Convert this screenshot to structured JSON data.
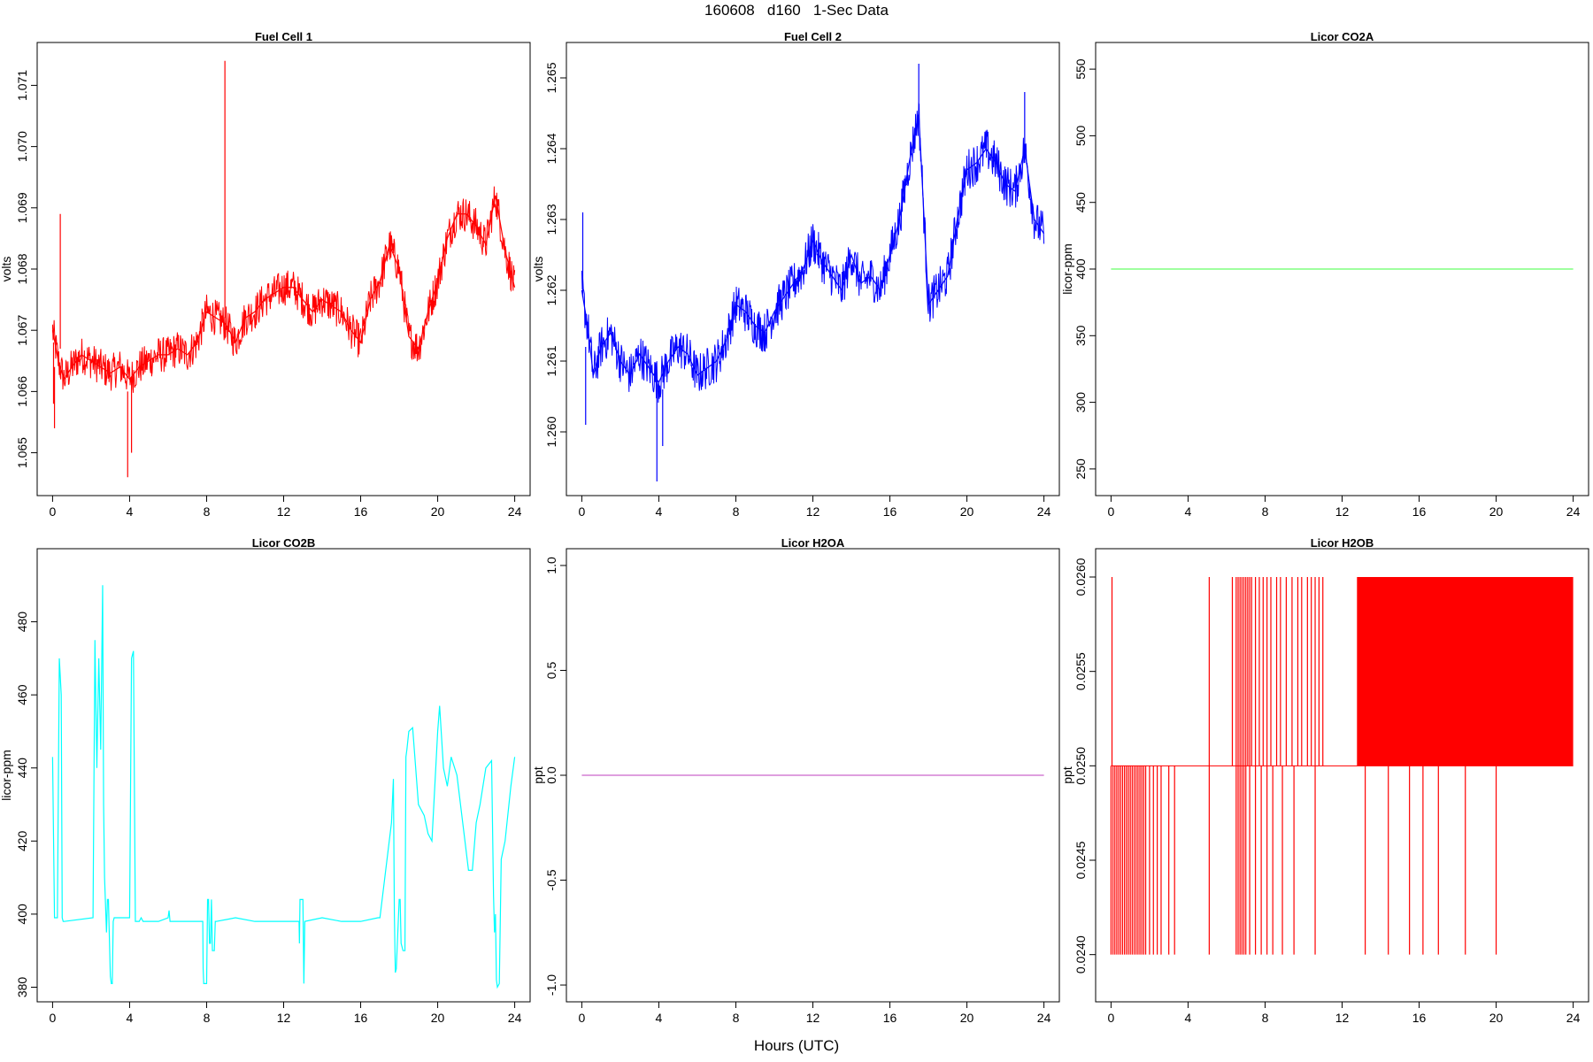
{
  "figure": {
    "title": "160608   d160   1-Sec Data",
    "xlabel": "Hours (UTC)"
  },
  "chart_data": [
    {
      "type": "line",
      "title": "Fuel Cell 1",
      "xlabel": "",
      "ylabel": "volts",
      "color": "#ff0000",
      "xlim": [
        -0.8,
        24.8
      ],
      "ylim": [
        1.0643,
        1.0717
      ],
      "xticks": [
        0,
        4,
        8,
        12,
        16,
        20,
        24
      ],
      "yticks": [
        1.065,
        1.066,
        1.067,
        1.068,
        1.069,
        1.07,
        1.071
      ],
      "ytick_labels": [
        "1.065",
        "1.066",
        "1.067",
        "1.068",
        "1.069",
        "1.070",
        "1.071"
      ],
      "noise": 0.0003,
      "series": [
        {
          "x": [
            0,
            0.3,
            0.6,
            1,
            1.5,
            2,
            2.5,
            3,
            3.5,
            4,
            4.5,
            5,
            5.5,
            6,
            6.5,
            7,
            7.5,
            8,
            8.5,
            9,
            9.5,
            10,
            10.5,
            11,
            11.5,
            12,
            12.5,
            13,
            13.5,
            14,
            14.5,
            15,
            15.5,
            16,
            16.5,
            17,
            17.5,
            18,
            18.5,
            19,
            19.5,
            20,
            20.5,
            21,
            21.5,
            22,
            22.5,
            23,
            23.5,
            24
          ],
          "y": [
            1.067,
            1.0665,
            1.0662,
            1.0664,
            1.0666,
            1.0665,
            1.0664,
            1.0663,
            1.0664,
            1.0662,
            1.0664,
            1.0665,
            1.0666,
            1.0666,
            1.0667,
            1.0666,
            1.0668,
            1.0673,
            1.0672,
            1.0671,
            1.0668,
            1.0672,
            1.0673,
            1.0675,
            1.0676,
            1.0677,
            1.0677,
            1.0675,
            1.0673,
            1.0675,
            1.0674,
            1.0673,
            1.067,
            1.0668,
            1.0675,
            1.0678,
            1.0684,
            1.068,
            1.0669,
            1.0667,
            1.0673,
            1.0678,
            1.0685,
            1.0689,
            1.0689,
            1.0687,
            1.0684,
            1.0692,
            1.0683,
            1.0677
          ]
        }
      ],
      "spikes": [
        {
          "x": 0.05,
          "y0": 1.0668,
          "y1": 1.0658
        },
        {
          "x": 0.1,
          "y0": 1.0664,
          "y1": 1.0654
        },
        {
          "x": 0.4,
          "y0": 1.0667,
          "y1": 1.0689
        },
        {
          "x": 3.9,
          "y0": 1.066,
          "y1": 1.0646
        },
        {
          "x": 4.1,
          "y0": 1.0662,
          "y1": 1.065
        },
        {
          "x": 8.95,
          "y0": 1.0672,
          "y1": 1.0714
        }
      ]
    },
    {
      "type": "line",
      "title": "Fuel Cell 2",
      "xlabel": "",
      "ylabel": "volts",
      "color": "#0000ff",
      "xlim": [
        -0.8,
        24.8
      ],
      "ylim": [
        1.2591,
        1.2655
      ],
      "xticks": [
        0,
        4,
        8,
        12,
        16,
        20,
        24
      ],
      "yticks": [
        1.26,
        1.261,
        1.262,
        1.263,
        1.264,
        1.265
      ],
      "ytick_labels": [
        "1.260",
        "1.261",
        "1.262",
        "1.263",
        "1.264",
        "1.265"
      ],
      "noise": 0.0003,
      "series": [
        {
          "x": [
            0,
            0.3,
            0.6,
            1,
            1.5,
            2,
            2.5,
            3,
            3.5,
            4,
            4.5,
            5,
            5.5,
            6,
            6.5,
            7,
            7.5,
            8,
            8.5,
            9,
            9.5,
            10,
            10.5,
            11,
            11.5,
            12,
            12.5,
            13,
            13.5,
            14,
            14.5,
            15,
            15.5,
            16,
            16.5,
            17,
            17.5,
            18,
            18.5,
            19,
            19.5,
            20,
            20.5,
            21,
            21.5,
            22,
            22.5,
            23,
            23.5,
            24
          ],
          "y": [
            1.262,
            1.2615,
            1.2608,
            1.2612,
            1.2614,
            1.261,
            1.2608,
            1.2611,
            1.2609,
            1.2607,
            1.261,
            1.2612,
            1.2611,
            1.2608,
            1.2609,
            1.261,
            1.2613,
            1.2618,
            1.2617,
            1.2615,
            1.2614,
            1.2617,
            1.2619,
            1.2621,
            1.2623,
            1.2627,
            1.2624,
            1.2622,
            1.262,
            1.2625,
            1.2621,
            1.2622,
            1.262,
            1.2625,
            1.263,
            1.2638,
            1.2645,
            1.2618,
            1.262,
            1.2622,
            1.263,
            1.2637,
            1.2638,
            1.264,
            1.2638,
            1.2635,
            1.2634,
            1.264,
            1.263,
            1.2628
          ]
        }
      ],
      "spikes": [
        {
          "x": 0.05,
          "y0": 1.2619,
          "y1": 1.2631
        },
        {
          "x": 0.2,
          "y0": 1.2612,
          "y1": 1.2601
        },
        {
          "x": 3.9,
          "y0": 1.2607,
          "y1": 1.2593
        },
        {
          "x": 4.2,
          "y0": 1.2606,
          "y1": 1.2598
        },
        {
          "x": 17.5,
          "y0": 1.2645,
          "y1": 1.2652
        },
        {
          "x": 23.0,
          "y0": 1.2638,
          "y1": 1.2648
        }
      ]
    },
    {
      "type": "line",
      "title": "Licor CO2A",
      "xlabel": "",
      "ylabel": "licor-ppm",
      "color": "#66ff66",
      "xlim": [
        -0.8,
        24.8
      ],
      "ylim": [
        230,
        570
      ],
      "xticks": [
        0,
        4,
        8,
        12,
        16,
        20,
        24
      ],
      "yticks": [
        250,
        300,
        350,
        400,
        450,
        500,
        550
      ],
      "ytick_labels": [
        "250",
        "300",
        "350",
        "400",
        "450",
        "500",
        "550"
      ],
      "noise": 0,
      "series": [
        {
          "x": [
            0,
            24
          ],
          "y": [
            400,
            400
          ]
        }
      ],
      "spikes": []
    },
    {
      "type": "line",
      "title": "Licor CO2B",
      "xlabel": "",
      "ylabel": "licor-ppm",
      "color": "#00ffff",
      "xlim": [
        -0.8,
        24.8
      ],
      "ylim": [
        376,
        500
      ],
      "xticks": [
        0,
        4,
        8,
        12,
        16,
        20,
        24
      ],
      "yticks": [
        380,
        400,
        420,
        440,
        460,
        480
      ],
      "ytick_labels": [
        "380",
        "400",
        "420",
        "440",
        "460",
        "480"
      ],
      "noise": 0,
      "series": [
        {
          "x": [
            0,
            0.1,
            0.2,
            0.25,
            0.35,
            0.45,
            0.5,
            0.55,
            0.6,
            2.1,
            2.2,
            2.3,
            2.4,
            2.5,
            2.6,
            2.65,
            2.7,
            2.8,
            2.85,
            2.9,
            3.0,
            3.05,
            3.1,
            3.15,
            3.2,
            4.0,
            4.1,
            4.2,
            4.3,
            4.4,
            4.5,
            4.6,
            4.7,
            5.5,
            6.0,
            6.05,
            6.1,
            7.8,
            7.82,
            7.85,
            8.0,
            8.05,
            8.1,
            8.15,
            8.2,
            8.25,
            8.3,
            8.4,
            8.45,
            8.5,
            9.5,
            10.5,
            11.5,
            12.8,
            12.82,
            12.85,
            13.0,
            13.05,
            13.1,
            14.0,
            15.0,
            16.0,
            16.9,
            17.0,
            17.3,
            17.6,
            17.7,
            17.75,
            17.8,
            17.85,
            18.0,
            18.05,
            18.1,
            18.2,
            18.3,
            18.35,
            18.4,
            18.5,
            18.7,
            19.0,
            19.3,
            19.5,
            19.7,
            20.0,
            20.1,
            20.3,
            20.5,
            20.7,
            21.0,
            21.3,
            21.6,
            21.8,
            22.0,
            22.2,
            22.5,
            22.8,
            22.9,
            22.95,
            23.0,
            23.05,
            23.1,
            23.2,
            23.3,
            23.5,
            23.8,
            24.0
          ],
          "y": [
            443,
            399,
            399,
            399,
            470,
            460,
            399,
            398,
            398,
            399,
            475,
            440,
            470,
            445,
            490,
            430,
            410,
            395,
            404,
            404,
            383,
            381,
            381,
            398,
            399,
            399,
            470,
            472,
            398,
            398,
            398,
            399,
            398,
            398,
            399,
            401,
            398,
            398,
            385,
            381,
            381,
            404,
            404,
            392,
            392,
            404,
            390,
            390,
            398,
            398,
            399,
            398,
            398,
            398,
            392,
            404,
            404,
            381,
            398,
            399,
            398,
            398,
            399,
            399,
            412,
            425,
            437,
            400,
            384,
            385,
            404,
            404,
            392,
            390,
            390,
            443,
            445,
            450,
            451,
            430,
            427,
            422,
            420,
            450,
            457,
            440,
            435,
            443,
            438,
            425,
            412,
            412,
            425,
            430,
            440,
            442,
            405,
            395,
            400,
            382,
            380,
            381,
            415,
            420,
            435,
            443
          ]
        }
      ],
      "spikes": []
    },
    {
      "type": "line",
      "title": "Licor H2OA",
      "xlabel": "",
      "ylabel": "ppt",
      "color": "#cc66cc",
      "xlim": [
        -0.8,
        24.8
      ],
      "ylim": [
        -1.08,
        1.08
      ],
      "xticks": [
        0,
        4,
        8,
        12,
        16,
        20,
        24
      ],
      "yticks": [
        -1.0,
        -0.5,
        0.0,
        0.5,
        1.0
      ],
      "ytick_labels": [
        "-1.0",
        "-0.5",
        "0.0",
        "0.5",
        "1.0"
      ],
      "noise": 0,
      "series": [
        {
          "x": [
            0,
            24
          ],
          "y": [
            0,
            0
          ]
        }
      ],
      "spikes": []
    },
    {
      "type": "line",
      "title": "Licor H2OB",
      "xlabel": "",
      "ylabel": "ppt",
      "color": "#ff0000",
      "xlim": [
        -0.8,
        24.8
      ],
      "ylim": [
        0.02375,
        0.02615
      ],
      "xticks": [
        0,
        4,
        8,
        12,
        16,
        20,
        24
      ],
      "yticks": [
        0.024,
        0.0245,
        0.025,
        0.0255,
        0.026
      ],
      "ytick_labels": [
        "0.0240",
        "0.0245",
        "0.0250",
        "0.0255",
        "0.0260"
      ],
      "noise": 0,
      "series": [
        {
          "x": [
            0,
            24
          ],
          "y": [
            0.025,
            0.025
          ]
        }
      ],
      "baseline": 0.025,
      "high": 0.026,
      "low": 0.024,
      "band": {
        "x0": 12.8,
        "x1": 24.0,
        "y0": 0.025,
        "y1": 0.026
      },
      "spikes_up_x": [
        0.05,
        5.1,
        6.3,
        6.5,
        6.6,
        6.7,
        6.8,
        6.9,
        7.0,
        7.1,
        7.2,
        7.3,
        7.5,
        7.7,
        7.9,
        8.1,
        8.3,
        8.6,
        8.8,
        9.1,
        9.4,
        9.7,
        9.9,
        10.2,
        10.4,
        10.6,
        10.8,
        11.0,
        12.8,
        12.9,
        13.0,
        13.2,
        13.4
      ],
      "spikes_down_x": [
        0.0,
        0.1,
        0.2,
        0.3,
        0.4,
        0.5,
        0.6,
        0.7,
        0.8,
        0.9,
        1.0,
        1.1,
        1.2,
        1.3,
        1.4,
        1.5,
        1.6,
        1.7,
        1.8,
        2.0,
        2.2,
        2.4,
        2.6,
        3.0,
        3.3,
        5.1,
        6.5,
        6.6,
        6.7,
        6.8,
        6.9,
        7.0,
        7.2,
        7.5,
        7.8,
        8.1,
        8.4,
        8.9,
        9.5,
        10.6,
        13.2,
        14.4,
        15.5,
        16.2,
        17.0,
        18.4,
        20.0
      ]
    }
  ]
}
